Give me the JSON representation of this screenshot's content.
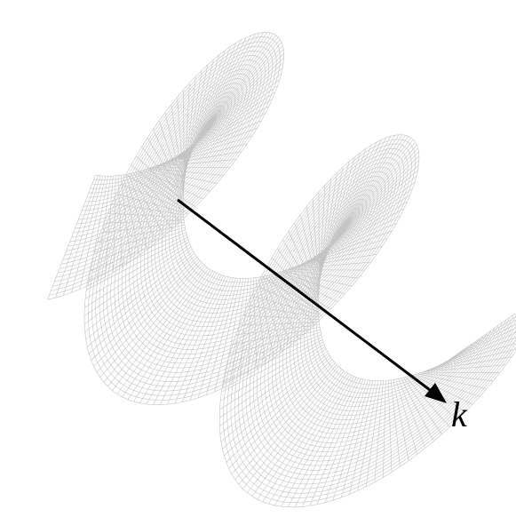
{
  "arrow": {
    "label": "k"
  }
}
